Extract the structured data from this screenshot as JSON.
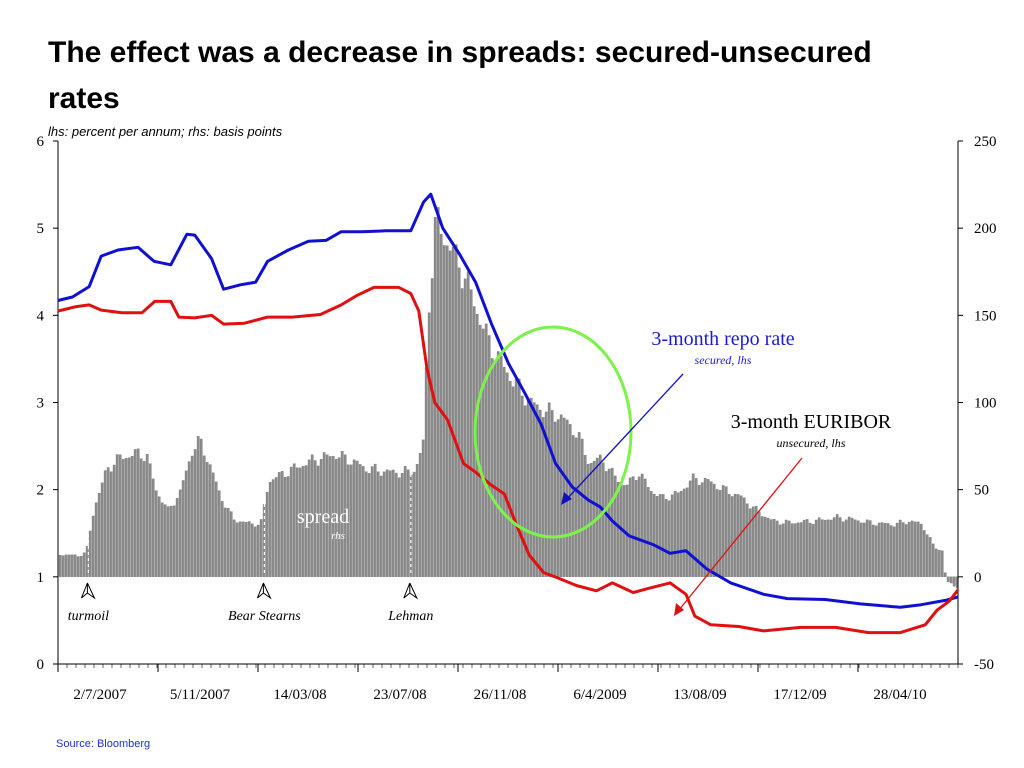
{
  "slide": {
    "title": "The effect was a decrease in  spreads: secured-unsecured rates",
    "subtitle": "lhs: percent per annum; rhs: basis points",
    "source": "Source: Bloomberg"
  },
  "chart_data": {
    "type": "line",
    "x_tick_labels": [
      "2/7/2007",
      "5/11/2007",
      "14/03/08",
      "23/07/08",
      "26/11/08",
      "6/4/2009",
      "13/08/09",
      "17/12/09",
      "28/04/10"
    ],
    "x_range": [
      "2007-07-02",
      "2010-07-31"
    ],
    "y_left": {
      "ticks": [
        "0",
        "1",
        "2",
        "3",
        "4",
        "5",
        "6"
      ],
      "range": [
        0,
        6
      ],
      "unit": "percent per annum"
    },
    "y_right": {
      "ticks": [
        "-50",
        "0",
        "50",
        "100",
        "150",
        "200",
        "250"
      ],
      "range": [
        -50,
        250
      ],
      "unit": "basis points"
    },
    "series": [
      {
        "name": "3-month repo rate",
        "sublabel": "secured, lhs",
        "axis": "left",
        "color": "#1010d0",
        "points": [
          [
            "2007-07-02",
            4.17
          ],
          [
            "2007-07-20",
            4.21
          ],
          [
            "2007-08-10",
            4.33
          ],
          [
            "2007-08-25",
            4.68
          ],
          [
            "2007-09-15",
            4.75
          ],
          [
            "2007-10-10",
            4.78
          ],
          [
            "2007-10-30",
            4.62
          ],
          [
            "2007-11-20",
            4.58
          ],
          [
            "2007-12-10",
            4.93
          ],
          [
            "2007-12-20",
            4.92
          ],
          [
            "2008-01-10",
            4.65
          ],
          [
            "2008-01-25",
            4.3
          ],
          [
            "2008-02-15",
            4.35
          ],
          [
            "2008-03-05",
            4.38
          ],
          [
            "2008-03-20",
            4.62
          ],
          [
            "2008-04-15",
            4.75
          ],
          [
            "2008-05-10",
            4.85
          ],
          [
            "2008-06-01",
            4.86
          ],
          [
            "2008-06-20",
            4.96
          ],
          [
            "2008-07-15",
            4.96
          ],
          [
            "2008-08-15",
            4.97
          ],
          [
            "2008-09-15",
            4.97
          ],
          [
            "2008-10-01",
            5.3
          ],
          [
            "2008-10-10",
            5.39
          ],
          [
            "2008-10-25",
            5.0
          ],
          [
            "2008-11-15",
            4.7
          ],
          [
            "2008-12-05",
            4.38
          ],
          [
            "2008-12-25",
            3.9
          ],
          [
            "2009-01-15",
            3.45
          ],
          [
            "2009-02-05",
            3.1
          ],
          [
            "2009-02-25",
            2.75
          ],
          [
            "2009-03-15",
            2.3
          ],
          [
            "2009-04-05",
            2.03
          ],
          [
            "2009-04-25",
            1.88
          ],
          [
            "2009-05-10",
            1.8
          ],
          [
            "2009-05-25",
            1.64
          ],
          [
            "2009-06-15",
            1.47
          ],
          [
            "2009-07-15",
            1.37
          ],
          [
            "2009-08-05",
            1.27
          ],
          [
            "2009-08-25",
            1.3
          ],
          [
            "2009-09-20",
            1.09
          ],
          [
            "2009-10-20",
            0.93
          ],
          [
            "2009-11-30",
            0.8
          ],
          [
            "2009-12-30",
            0.75
          ],
          [
            "2010-02-15",
            0.74
          ],
          [
            "2010-03-31",
            0.69
          ],
          [
            "2010-05-20",
            0.65
          ],
          [
            "2010-06-15",
            0.68
          ],
          [
            "2010-07-15",
            0.73
          ],
          [
            "2010-07-31",
            0.77
          ]
        ]
      },
      {
        "name": "3-month EURIBOR",
        "sublabel": "unsecured, lhs",
        "axis": "left",
        "color": "#e01010",
        "points": [
          [
            "2007-07-02",
            4.05
          ],
          [
            "2007-07-25",
            4.1
          ],
          [
            "2007-08-10",
            4.12
          ],
          [
            "2007-08-25",
            4.06
          ],
          [
            "2007-09-20",
            4.03
          ],
          [
            "2007-10-15",
            4.03
          ],
          [
            "2007-10-31",
            4.16
          ],
          [
            "2007-11-20",
            4.16
          ],
          [
            "2007-11-30",
            3.98
          ],
          [
            "2007-12-20",
            3.97
          ],
          [
            "2008-01-10",
            4.0
          ],
          [
            "2008-01-25",
            3.9
          ],
          [
            "2008-02-20",
            3.91
          ],
          [
            "2008-03-20",
            3.98
          ],
          [
            "2008-04-20",
            3.98
          ],
          [
            "2008-05-25",
            4.01
          ],
          [
            "2008-06-20",
            4.12
          ],
          [
            "2008-07-10",
            4.23
          ],
          [
            "2008-07-31",
            4.32
          ],
          [
            "2008-08-31",
            4.32
          ],
          [
            "2008-09-15",
            4.25
          ],
          [
            "2008-09-25",
            4.05
          ],
          [
            "2008-10-05",
            3.4
          ],
          [
            "2008-10-15",
            3.0
          ],
          [
            "2008-10-31",
            2.8
          ],
          [
            "2008-11-20",
            2.3
          ],
          [
            "2008-12-05",
            2.2
          ],
          [
            "2008-12-25",
            2.05
          ],
          [
            "2009-01-10",
            1.95
          ],
          [
            "2009-01-25",
            1.6
          ],
          [
            "2009-02-10",
            1.25
          ],
          [
            "2009-02-28",
            1.05
          ],
          [
            "2009-03-20",
            0.98
          ],
          [
            "2009-04-10",
            0.9
          ],
          [
            "2009-05-05",
            0.84
          ],
          [
            "2009-05-25",
            0.93
          ],
          [
            "2009-06-20",
            0.82
          ],
          [
            "2009-07-10",
            0.87
          ],
          [
            "2009-08-05",
            0.93
          ],
          [
            "2009-08-25",
            0.8
          ],
          [
            "2009-09-05",
            0.55
          ],
          [
            "2009-09-25",
            0.45
          ],
          [
            "2009-10-30",
            0.43
          ],
          [
            "2009-11-30",
            0.38
          ],
          [
            "2010-01-15",
            0.42
          ],
          [
            "2010-02-28",
            0.42
          ],
          [
            "2010-04-10",
            0.36
          ],
          [
            "2010-05-20",
            0.36
          ],
          [
            "2010-06-20",
            0.45
          ],
          [
            "2010-07-05",
            0.62
          ],
          [
            "2010-07-20",
            0.72
          ],
          [
            "2010-07-31",
            0.85
          ]
        ]
      },
      {
        "name": "spread",
        "sublabel": "rhs",
        "axis": "right",
        "type": "bar",
        "color": "#8c8c8c",
        "points": [
          [
            "2007-07-02",
            13
          ],
          [
            "2007-07-25",
            12
          ],
          [
            "2007-08-05",
            14
          ],
          [
            "2007-08-15",
            40
          ],
          [
            "2007-08-31",
            62
          ],
          [
            "2007-09-15",
            68
          ],
          [
            "2007-10-10",
            71
          ],
          [
            "2007-10-20",
            69
          ],
          [
            "2007-10-31",
            50
          ],
          [
            "2007-11-15",
            38
          ],
          [
            "2007-11-30",
            48
          ],
          [
            "2007-12-15",
            72
          ],
          [
            "2007-12-25",
            78
          ],
          [
            "2008-01-05",
            66
          ],
          [
            "2008-01-20",
            46
          ],
          [
            "2008-02-05",
            33
          ],
          [
            "2008-02-20",
            31
          ],
          [
            "2008-03-10",
            30
          ],
          [
            "2008-03-20",
            55
          ],
          [
            "2008-04-20",
            62
          ],
          [
            "2008-05-15",
            67
          ],
          [
            "2008-06-10",
            70
          ],
          [
            "2008-06-30",
            67
          ],
          [
            "2008-07-20",
            62
          ],
          [
            "2008-08-20",
            60
          ],
          [
            "2008-09-10",
            60
          ],
          [
            "2008-09-20",
            62
          ],
          [
            "2008-09-30",
            78
          ],
          [
            "2008-10-05",
            150
          ],
          [
            "2008-10-15",
            205
          ],
          [
            "2008-10-31",
            190
          ],
          [
            "2008-11-15",
            178
          ],
          [
            "2008-11-30",
            160
          ],
          [
            "2008-12-15",
            140
          ],
          [
            "2008-12-31",
            126
          ],
          [
            "2009-01-20",
            112
          ],
          [
            "2009-02-10",
            100
          ],
          [
            "2009-03-01",
            95
          ],
          [
            "2009-03-20",
            92
          ],
          [
            "2009-04-10",
            82
          ],
          [
            "2009-04-25",
            65
          ],
          [
            "2009-05-10",
            68
          ],
          [
            "2009-05-25",
            58
          ],
          [
            "2009-06-10",
            52
          ],
          [
            "2009-06-25",
            60
          ],
          [
            "2009-07-10",
            50
          ],
          [
            "2009-07-25",
            45
          ],
          [
            "2009-08-15",
            48
          ],
          [
            "2009-08-31",
            56
          ],
          [
            "2009-09-20",
            55
          ],
          [
            "2009-10-10",
            50
          ],
          [
            "2009-10-31",
            46
          ],
          [
            "2009-11-20",
            38
          ],
          [
            "2009-12-10",
            32
          ],
          [
            "2009-12-31",
            31
          ],
          [
            "2010-01-31",
            32
          ],
          [
            "2010-02-28",
            34
          ],
          [
            "2010-03-20",
            33
          ],
          [
            "2010-04-10",
            31
          ],
          [
            "2010-05-10",
            30
          ],
          [
            "2010-05-31",
            32
          ],
          [
            "2010-06-15",
            30
          ],
          [
            "2010-06-30",
            17
          ],
          [
            "2010-07-10",
            15
          ],
          [
            "2010-07-15",
            -3
          ],
          [
            "2010-07-31",
            -6
          ]
        ]
      }
    ],
    "events": [
      {
        "label": "turmoil",
        "date": "2007-08-09"
      },
      {
        "label": "Bear Stearns",
        "date": "2008-03-16"
      },
      {
        "label": "Lehman",
        "date": "2008-09-15"
      }
    ],
    "annotations": {
      "repo_label": "3-month repo rate",
      "repo_sublabel": "secured, lhs",
      "euribor_label": "3-month EURIBOR",
      "euribor_sublabel": "unsecured, lhs",
      "spread_label": "spread",
      "spread_sublabel": "rhs",
      "highlight_circle_color": "#7cf24a",
      "repo_arrow_color": "#1010c0",
      "euribor_arrow_color": "#e01010",
      "event_arrow_style": "marker",
      "event_guideline": "dashed white"
    }
  }
}
